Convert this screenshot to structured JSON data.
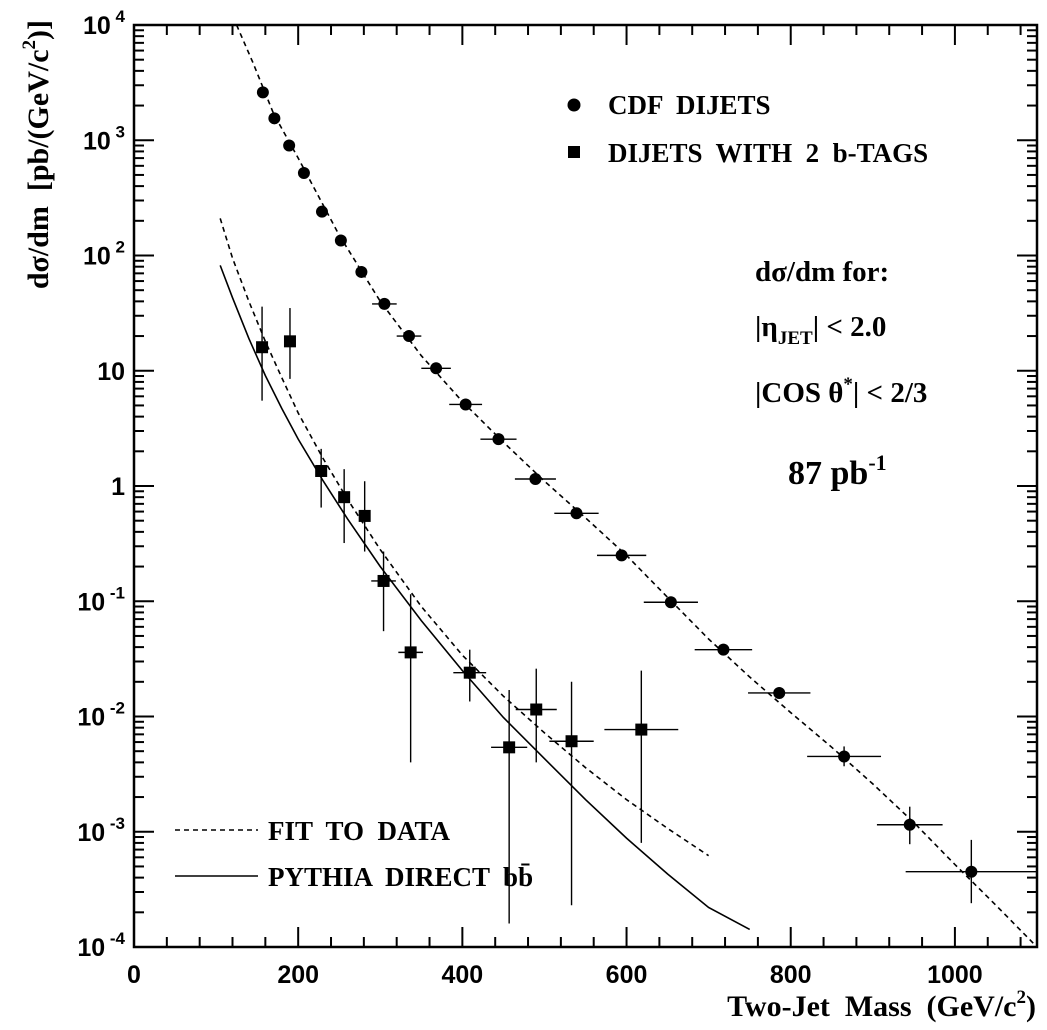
{
  "chart_data": {
    "type": "scatter",
    "xlabel": "Two-Jet Mass  (GeV/c²)",
    "ylabel": "dσ/dm  [pb/(GeV/c²)]",
    "xlim": [
      0,
      1100
    ],
    "ylim": [
      0.0001,
      10000
    ],
    "y_scale": "log",
    "x_ticks": [
      "0",
      "200",
      "400",
      "600",
      "800",
      "1000"
    ],
    "y_ticks": [
      {
        "base": "10",
        "exp": "4"
      },
      {
        "base": "10",
        "exp": "3"
      },
      {
        "base": "10",
        "exp": "2"
      },
      {
        "base": "10",
        "exp": ""
      },
      {
        "base": "1",
        "exp": ""
      },
      {
        "base": "10",
        "exp": "-1"
      },
      {
        "base": "10",
        "exp": "-2"
      },
      {
        "base": "10",
        "exp": "-3"
      },
      {
        "base": "10",
        "exp": "-4"
      }
    ],
    "series": [
      {
        "name": "CDF  DIJETS",
        "marker": "circle",
        "points": [
          {
            "x": 157,
            "y": 2600,
            "xerr": 0,
            "ylo": 2600,
            "yhi": 2600
          },
          {
            "x": 171,
            "y": 1550,
            "xerr": 0,
            "ylo": 1550,
            "yhi": 1550
          },
          {
            "x": 189,
            "y": 900,
            "xerr": 0,
            "ylo": 900,
            "yhi": 900
          },
          {
            "x": 207,
            "y": 520,
            "xerr": 0,
            "ylo": 520,
            "yhi": 520
          },
          {
            "x": 229,
            "y": 240,
            "xerr": 0,
            "ylo": 240,
            "yhi": 240
          },
          {
            "x": 252,
            "y": 135,
            "xerr": 0,
            "ylo": 135,
            "yhi": 135
          },
          {
            "x": 277,
            "y": 72,
            "xerr": 0,
            "ylo": 72,
            "yhi": 72
          },
          {
            "x": 305,
            "y": 38,
            "xerr": 15,
            "ylo": 38,
            "yhi": 38
          },
          {
            "x": 335,
            "y": 20,
            "xerr": 15,
            "ylo": 20,
            "yhi": 20
          },
          {
            "x": 368,
            "y": 10.5,
            "xerr": 18,
            "ylo": 10.5,
            "yhi": 10.5
          },
          {
            "x": 404,
            "y": 5.1,
            "xerr": 20,
            "ylo": 5.1,
            "yhi": 5.1
          },
          {
            "x": 444,
            "y": 2.55,
            "xerr": 22,
            "ylo": 2.55,
            "yhi": 2.55
          },
          {
            "x": 489,
            "y": 1.15,
            "xerr": 25,
            "ylo": 1.15,
            "yhi": 1.15
          },
          {
            "x": 539,
            "y": 0.58,
            "xerr": 27,
            "ylo": 0.58,
            "yhi": 0.58
          },
          {
            "x": 594,
            "y": 0.25,
            "xerr": 30,
            "ylo": 0.25,
            "yhi": 0.25
          },
          {
            "x": 654,
            "y": 0.098,
            "xerr": 33,
            "ylo": 0.098,
            "yhi": 0.098
          },
          {
            "x": 718,
            "y": 0.038,
            "xerr": 35,
            "ylo": 0.038,
            "yhi": 0.038
          },
          {
            "x": 786,
            "y": 0.016,
            "xerr": 38,
            "ylo": 0.016,
            "yhi": 0.016
          },
          {
            "x": 865,
            "y": 0.0045,
            "xerr": 45,
            "ylo": 0.0037,
            "yhi": 0.0055
          },
          {
            "x": 945,
            "y": 0.00115,
            "xerr": 40,
            "ylo": 0.00078,
            "yhi": 0.00165
          },
          {
            "x": 1020,
            "y": 0.00045,
            "xerr": 80,
            "ylo": 0.00024,
            "yhi": 0.00085
          }
        ]
      },
      {
        "name": "DIJETS  WITH  2  b-TAGS",
        "marker": "square",
        "points": [
          {
            "x": 156,
            "y": 16,
            "xerr": 0,
            "ylo": 5.5,
            "yhi": 36
          },
          {
            "x": 190,
            "y": 18,
            "xerr": 0,
            "ylo": 8.5,
            "yhi": 35
          },
          {
            "x": 228,
            "y": 1.35,
            "xerr": 0,
            "ylo": 0.65,
            "yhi": 2.1
          },
          {
            "x": 256,
            "y": 0.8,
            "xerr": 0,
            "ylo": 0.32,
            "yhi": 1.4
          },
          {
            "x": 281,
            "y": 0.55,
            "xerr": 0,
            "ylo": 0.27,
            "yhi": 1.1
          },
          {
            "x": 304,
            "y": 0.15,
            "xerr": 15,
            "ylo": 0.055,
            "yhi": 0.27
          },
          {
            "x": 337,
            "y": 0.036,
            "xerr": 15,
            "ylo": 0.004,
            "yhi": 0.115
          },
          {
            "x": 409,
            "y": 0.024,
            "xerr": 20,
            "ylo": 0.0135,
            "yhi": 0.038
          },
          {
            "x": 457,
            "y": 0.0054,
            "xerr": 22,
            "ylo": 0.00016,
            "yhi": 0.017
          },
          {
            "x": 490,
            "y": 0.0115,
            "xerr": 25,
            "ylo": 0.004,
            "yhi": 0.026
          },
          {
            "x": 533,
            "y": 0.0061,
            "xerr": 27,
            "ylo": 0.00023,
            "yhi": 0.02
          },
          {
            "x": 618,
            "y": 0.0077,
            "xerr": 45,
            "ylo": 0.0008,
            "yhi": 0.025
          }
        ]
      }
    ],
    "curves": [
      {
        "name": "FIT  TO  DATA",
        "style": "dashed",
        "points": [
          [
            125,
            10000
          ],
          [
            145,
            4700
          ],
          [
            170,
            1700
          ],
          [
            200,
            700
          ],
          [
            250,
            150
          ],
          [
            300,
            40
          ],
          [
            350,
            13.5
          ],
          [
            400,
            5.4
          ],
          [
            450,
            2.4
          ],
          [
            500,
            1.1
          ],
          [
            550,
            0.53
          ],
          [
            600,
            0.25
          ],
          [
            650,
            0.108
          ],
          [
            700,
            0.047
          ],
          [
            750,
            0.022
          ],
          [
            800,
            0.0108
          ],
          [
            850,
            0.0054
          ],
          [
            900,
            0.0026
          ],
          [
            950,
            0.0012
          ],
          [
            1000,
            0.00052
          ],
          [
            1050,
            0.00023
          ],
          [
            1100,
            0.0001
          ]
        ]
      },
      {
        "name": "FIT  TO  DATA",
        "style": "dashed",
        "points": [
          [
            105,
            210
          ],
          [
            120,
            95
          ],
          [
            140,
            40
          ],
          [
            160,
            18
          ],
          [
            180,
            8.7
          ],
          [
            200,
            4.3
          ],
          [
            230,
            1.75
          ],
          [
            260,
            0.77
          ],
          [
            300,
            0.28
          ],
          [
            350,
            0.09
          ],
          [
            400,
            0.034
          ],
          [
            450,
            0.015
          ],
          [
            500,
            0.0072
          ],
          [
            550,
            0.0036
          ],
          [
            600,
            0.0019
          ],
          [
            650,
            0.00107
          ],
          [
            700,
            0.00062
          ]
        ]
      },
      {
        "name": "PYTHIA  DIRECT  bb̄",
        "style": "solid",
        "points": [
          [
            105,
            82
          ],
          [
            120,
            43
          ],
          [
            140,
            19
          ],
          [
            160,
            9.1
          ],
          [
            180,
            4.7
          ],
          [
            200,
            2.55
          ],
          [
            230,
            1.12
          ],
          [
            260,
            0.52
          ],
          [
            300,
            0.2
          ],
          [
            350,
            0.068
          ],
          [
            400,
            0.025
          ],
          [
            450,
            0.0098
          ],
          [
            500,
            0.0043
          ],
          [
            550,
            0.0019
          ],
          [
            600,
            0.00088
          ],
          [
            650,
            0.00043
          ],
          [
            700,
            0.00022
          ],
          [
            750,
            0.000142
          ]
        ]
      }
    ],
    "legend_top": [
      {
        "marker": "circle",
        "label": "CDF  DIJETS"
      },
      {
        "marker": "square",
        "label": "DIJETS  WITH  2  b-TAGS"
      }
    ],
    "legend_bottom": [
      {
        "style": "dashed",
        "label": "FIT  TO  DATA"
      },
      {
        "style": "solid",
        "label": "PYTHIA  DIRECT  bb̄"
      }
    ],
    "annotation": {
      "line1": "dσ/dm for:",
      "eta_pre": "|η",
      "eta_sub": "JET",
      "eta_post": "| < 2.0",
      "cos_pre": "|COS θ",
      "cos_sup": "*",
      "cos_post": "| < 2/3",
      "lumi": "87 pb",
      "lumi_sup": "-1"
    },
    "ylabel_parts": {
      "pre": "dσ/dm  [pb/(GeV/c",
      "sup": "2",
      "post": ")]"
    },
    "xlabel_parts": {
      "pre": "Two-Jet  Mass  (GeV/c",
      "sup": "2",
      "post": ")"
    }
  }
}
